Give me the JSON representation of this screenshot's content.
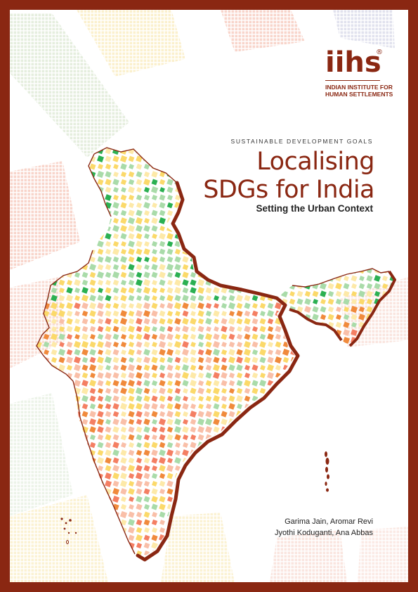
{
  "brand": {
    "logo_text": "iihs",
    "registered_mark": "®",
    "institute_name": "INDIAN INSTITUTE FOR\nHUMAN SETTLEMENTS",
    "color": "#8a2712"
  },
  "cover": {
    "kicker": "SUSTAINABLE DEVELOPMENT GOALS",
    "title_line1": "Localising",
    "title_line2": "SDGs for India",
    "subtitle": "Setting the Urban Context"
  },
  "authors": [
    "Garima Jain, Aromar Revi",
    "Jyothi Koduganti, Ana Abbas"
  ],
  "illustration": {
    "subject": "india-map-icon",
    "palette": [
      "#2bb052",
      "#a9dba9",
      "#fbd96a",
      "#fde9a8",
      "#f47f63",
      "#f9bfa8",
      "#f08a3c"
    ]
  }
}
